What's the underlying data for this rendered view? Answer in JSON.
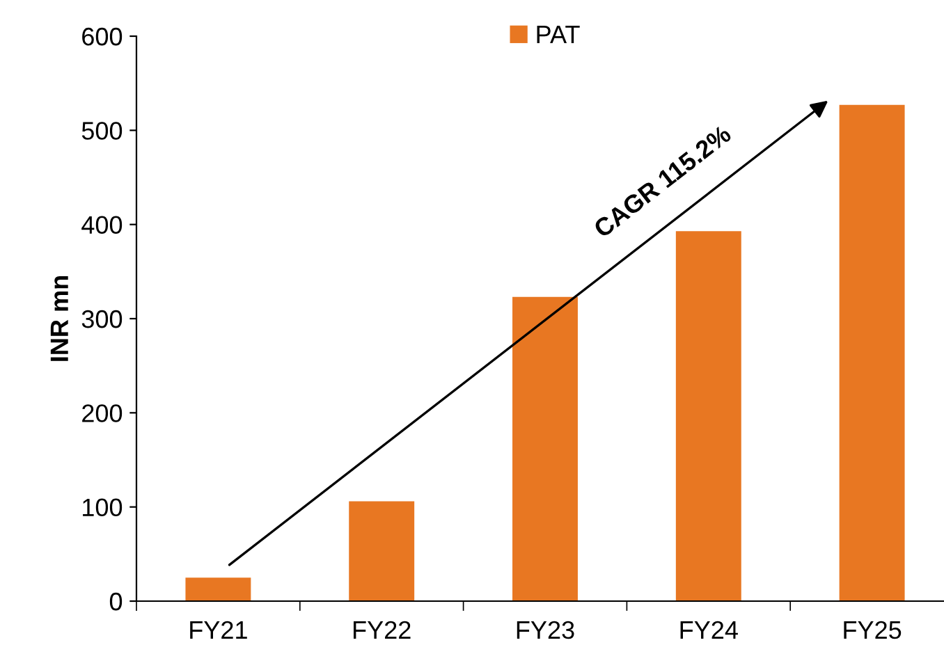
{
  "chart_data": {
    "type": "bar",
    "ylabel": "INR mn",
    "categories": [
      "FY21",
      "FY22",
      "FY23",
      "FY24",
      "FY25"
    ],
    "series": [
      {
        "name": "PAT",
        "color": "#e87722",
        "values": [
          25,
          106,
          323,
          393,
          527
        ]
      }
    ],
    "ylim": [
      0,
      600
    ],
    "yticks": [
      0,
      100,
      200,
      300,
      400,
      500,
      600
    ],
    "annotations": [
      "CAGR 115.2%"
    ],
    "legend": "top",
    "grid": false
  }
}
